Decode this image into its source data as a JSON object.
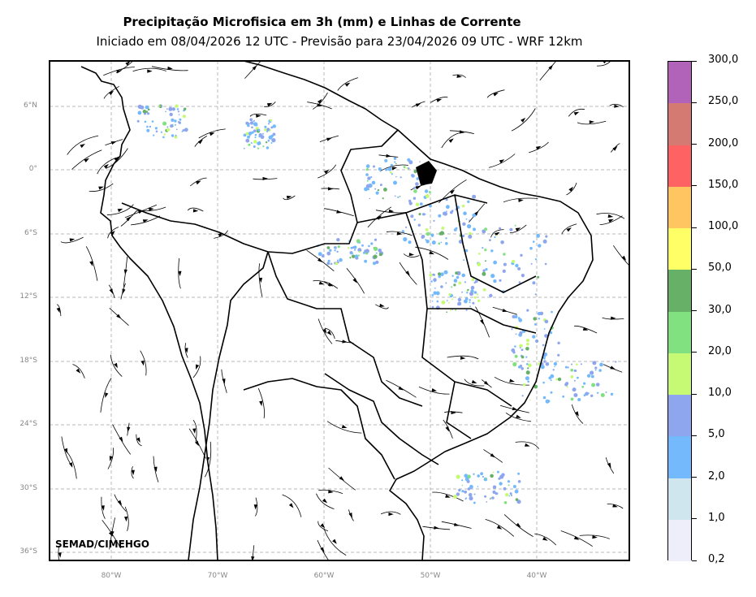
{
  "title": "Precipitação Microfisica em 3h (mm) e Linhas de Corrente",
  "subtitle": "Iniciado em 08/04/2026 12 UTC - Previsão para 23/04/2026 09 UTC - WRF 12km",
  "credit": "SEMAD/CIMEHGO",
  "lat_labels": [
    "6°N",
    "0°",
    "6°S",
    "12°S",
    "18°S",
    "24°S",
    "30°S",
    "36°S"
  ],
  "lon_labels": [
    "80°W",
    "70°W",
    "60°W",
    "50°W",
    "40°W"
  ],
  "colorbar": {
    "labels": [
      "0,2",
      "1,0",
      "2,0",
      "5,0",
      "10,0",
      "20,0",
      "30,0",
      "50,0",
      "100,0",
      "150,0",
      "200,0",
      "250,0",
      "300,0"
    ],
    "colors": [
      "#eeeefa",
      "#cfe6ee",
      "#74b9fb",
      "#8ea6ee",
      "#c6fa74",
      "#81e07f",
      "#66b067",
      "#ffff66",
      "#ffc561",
      "#ff6262",
      "#d47a72",
      "#b063b8"
    ]
  }
}
